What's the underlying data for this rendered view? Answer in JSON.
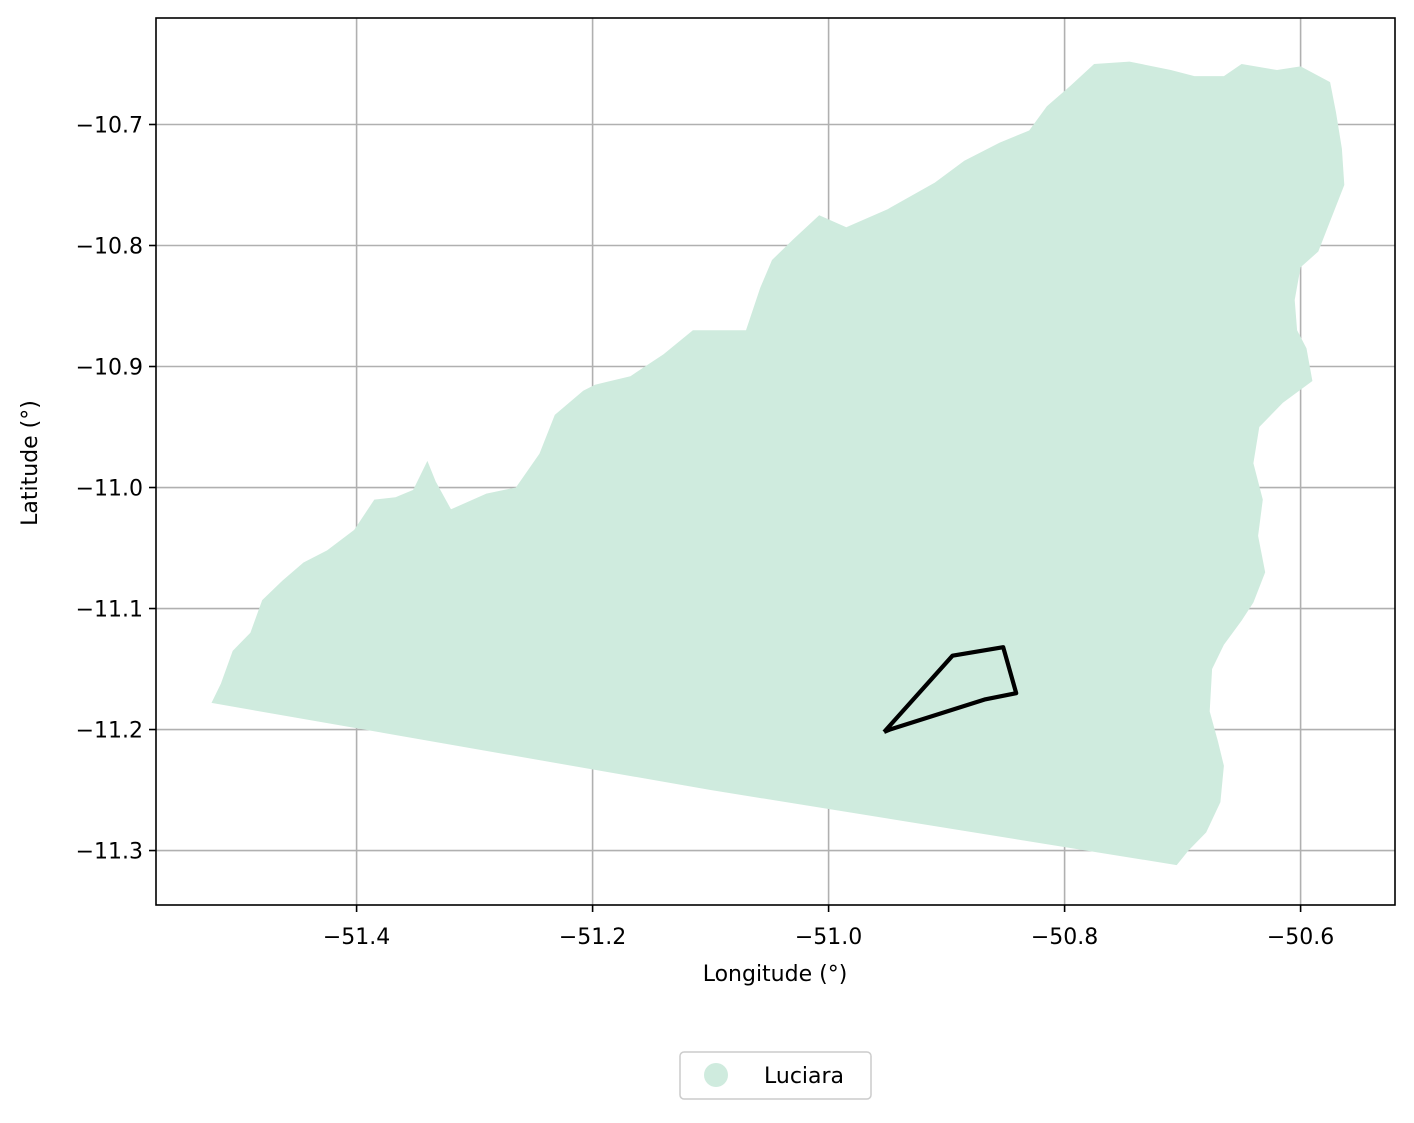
{
  "chart_data": {
    "type": "map",
    "title": "",
    "xlabel": "Longitude (°)",
    "ylabel": "Latitude (°)",
    "xlim": [
      -51.57,
      -50.52
    ],
    "ylim": [
      -11.345,
      -10.612
    ],
    "xticks": [
      -51.4,
      -51.2,
      -51.0,
      -50.8,
      -50.6
    ],
    "yticks": [
      -10.7,
      -10.8,
      -10.9,
      -11.0,
      -11.1,
      -11.2,
      -11.3
    ],
    "xtick_labels": [
      "−51.4",
      "−51.2",
      "−51.0",
      "−50.8",
      "−50.6"
    ],
    "ytick_labels": [
      "−10.7",
      "−10.8",
      "−10.9",
      "−11.0",
      "−11.1",
      "−11.2",
      "−11.3"
    ],
    "grid": true,
    "legend_position": "bottom-center",
    "legend": [
      {
        "name": "Luciara",
        "color": "#cfebde"
      }
    ],
    "region": {
      "name": "Luciara",
      "fill": "#cfebde",
      "boundary": [
        [
          -51.523,
          -11.178
        ],
        [
          -51.515,
          -11.162
        ],
        [
          -51.505,
          -11.135
        ],
        [
          -51.49,
          -11.12
        ],
        [
          -51.48,
          -11.093
        ],
        [
          -51.463,
          -11.077
        ],
        [
          -51.445,
          -11.062
        ],
        [
          -51.425,
          -11.052
        ],
        [
          -51.402,
          -11.035
        ],
        [
          -51.385,
          -11.01
        ],
        [
          -51.367,
          -11.008
        ],
        [
          -51.352,
          -11.002
        ],
        [
          -51.34,
          -10.978
        ],
        [
          -51.333,
          -10.995
        ],
        [
          -51.32,
          -11.018
        ],
        [
          -51.29,
          -11.005
        ],
        [
          -51.265,
          -11.0
        ],
        [
          -51.245,
          -10.972
        ],
        [
          -51.232,
          -10.94
        ],
        [
          -51.208,
          -10.92
        ],
        [
          -51.198,
          -10.915
        ],
        [
          -51.168,
          -10.908
        ],
        [
          -51.14,
          -10.89
        ],
        [
          -51.115,
          -10.87
        ],
        [
          -51.07,
          -10.87
        ],
        [
          -51.058,
          -10.835
        ],
        [
          -51.048,
          -10.812
        ],
        [
          -51.03,
          -10.795
        ],
        [
          -51.008,
          -10.775
        ],
        [
          -50.985,
          -10.785
        ],
        [
          -50.95,
          -10.77
        ],
        [
          -50.91,
          -10.748
        ],
        [
          -50.885,
          -10.73
        ],
        [
          -50.855,
          -10.715
        ],
        [
          -50.83,
          -10.705
        ],
        [
          -50.815,
          -10.685
        ],
        [
          -50.795,
          -10.668
        ],
        [
          -50.775,
          -10.65
        ],
        [
          -50.745,
          -10.648
        ],
        [
          -50.71,
          -10.655
        ],
        [
          -50.69,
          -10.66
        ],
        [
          -50.665,
          -10.66
        ],
        [
          -50.65,
          -10.65
        ],
        [
          -50.62,
          -10.655
        ],
        [
          -50.6,
          -10.652
        ],
        [
          -50.575,
          -10.665
        ],
        [
          -50.57,
          -10.69
        ],
        [
          -50.565,
          -10.72
        ],
        [
          -50.563,
          -10.75
        ],
        [
          -50.575,
          -10.78
        ],
        [
          -50.585,
          -10.805
        ],
        [
          -50.6,
          -10.818
        ],
        [
          -50.605,
          -10.845
        ],
        [
          -50.603,
          -10.87
        ],
        [
          -50.595,
          -10.885
        ],
        [
          -50.59,
          -10.912
        ],
        [
          -50.615,
          -10.93
        ],
        [
          -50.635,
          -10.95
        ],
        [
          -50.64,
          -10.98
        ],
        [
          -50.632,
          -11.01
        ],
        [
          -50.636,
          -11.04
        ],
        [
          -50.63,
          -11.07
        ],
        [
          -50.64,
          -11.095
        ],
        [
          -50.65,
          -11.11
        ],
        [
          -50.665,
          -11.13
        ],
        [
          -50.675,
          -11.15
        ],
        [
          -50.677,
          -11.185
        ],
        [
          -50.67,
          -11.21
        ],
        [
          -50.665,
          -11.23
        ],
        [
          -50.668,
          -11.26
        ],
        [
          -50.68,
          -11.285
        ],
        [
          -50.695,
          -11.3
        ],
        [
          -50.705,
          -11.312
        ],
        [
          -51.1,
          -11.25
        ],
        [
          -51.523,
          -11.178
        ]
      ]
    },
    "outline": {
      "stroke": "#000000",
      "points": [
        [
          -50.953,
          -11.202
        ],
        [
          -50.895,
          -11.139
        ],
        [
          -50.852,
          -11.132
        ],
        [
          -50.841,
          -11.17
        ],
        [
          -50.867,
          -11.175
        ],
        [
          -50.948,
          -11.2
        ],
        [
          -50.953,
          -11.202
        ]
      ]
    }
  }
}
